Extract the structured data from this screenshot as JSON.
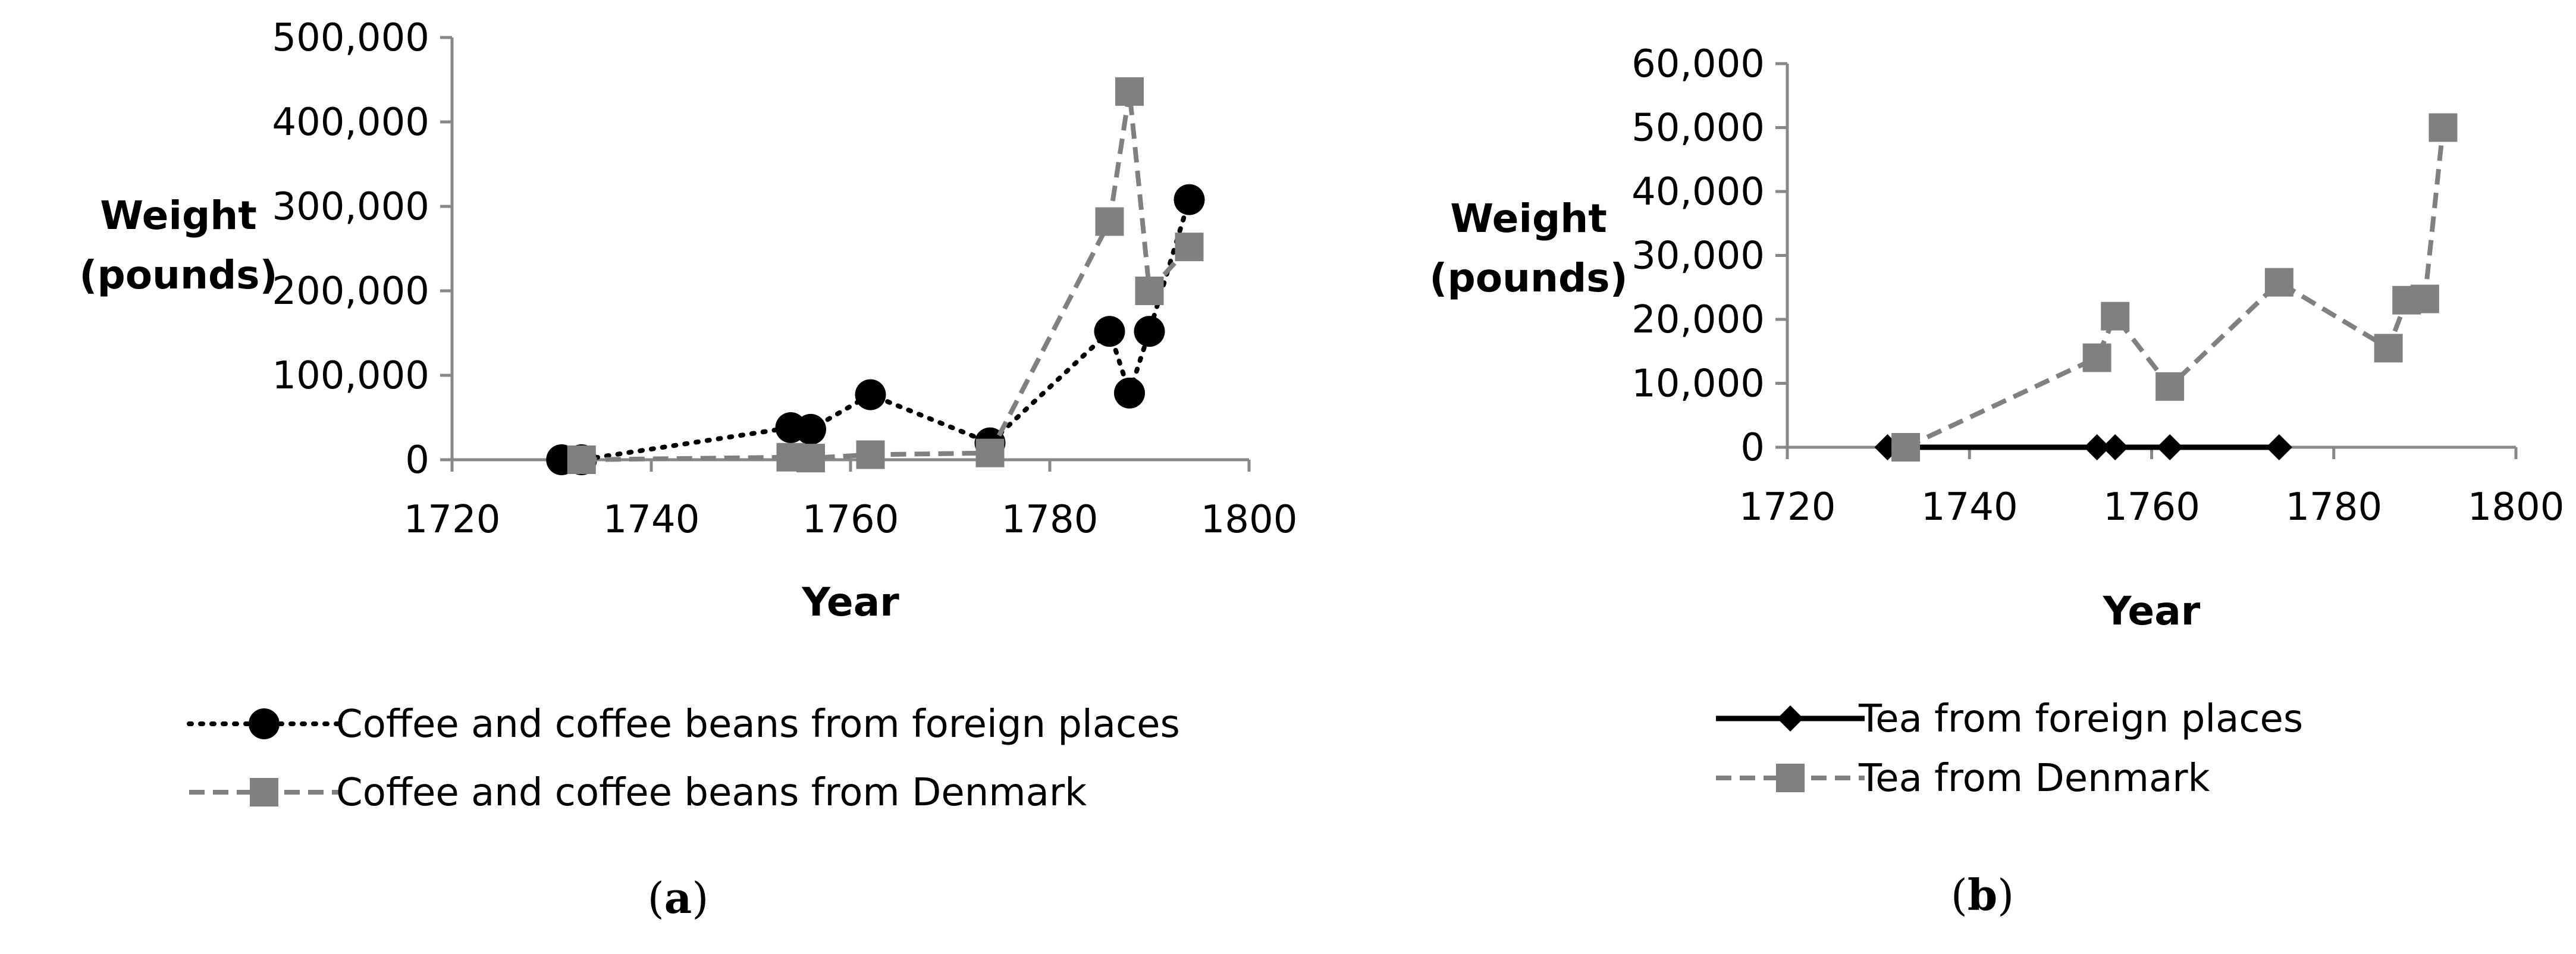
{
  "chart_data": [
    {
      "type": "line",
      "panel_label": "a",
      "title": "",
      "xlabel": "Year",
      "ylabel": [
        "Weight",
        "(pounds)"
      ],
      "xlim": [
        1720,
        1800
      ],
      "ylim": [
        0,
        500000
      ],
      "x_ticks": [
        1720,
        1740,
        1760,
        1780,
        1800
      ],
      "y_ticks": [
        0,
        100000,
        200000,
        300000,
        400000,
        500000
      ],
      "x_tick_labels": [
        "1720",
        "1740",
        "1760",
        "1780",
        "1800"
      ],
      "y_tick_labels": [
        "0",
        "100,000",
        "200,000",
        "300,000",
        "400,000",
        "500,000"
      ],
      "grid": false,
      "legend_position": "bottom",
      "series": [
        {
          "name": "Coffee and coffee beans from foreign places",
          "color": "#000000",
          "line_style": "dotted",
          "marker": "circle",
          "x": [
            1731,
            1733,
            1754,
            1756,
            1762,
            1774,
            1786,
            1788,
            1790,
            1794
          ],
          "y": [
            0,
            0,
            38000,
            36000,
            77000,
            20000,
            152000,
            79000,
            152000,
            308000
          ]
        },
        {
          "name": "Coffee and coffee beans from Denmark",
          "color": "#808080",
          "line_style": "dashed",
          "marker": "square",
          "x": [
            1733,
            1754,
            1756,
            1762,
            1774,
            1786,
            1788,
            1790,
            1794
          ],
          "y": [
            0,
            3000,
            2000,
            6000,
            8000,
            282000,
            436000,
            200000,
            252000
          ]
        }
      ]
    },
    {
      "type": "line",
      "panel_label": "b",
      "title": "",
      "xlabel": "Year",
      "ylabel": [
        "Weight",
        "(pounds)"
      ],
      "xlim": [
        1720,
        1800
      ],
      "ylim": [
        0,
        60000
      ],
      "x_ticks": [
        1720,
        1740,
        1760,
        1780,
        1800
      ],
      "y_ticks": [
        0,
        10000,
        20000,
        30000,
        40000,
        50000,
        60000
      ],
      "x_tick_labels": [
        "1720",
        "1740",
        "1760",
        "1780",
        "1800"
      ],
      "y_tick_labels": [
        "0",
        "10,000",
        "20,000",
        "30,000",
        "40,000",
        "50,000",
        "60,000"
      ],
      "grid": false,
      "legend_position": "bottom",
      "series": [
        {
          "name": "Tea from foreign places",
          "color": "#000000",
          "line_style": "solid",
          "marker": "diamond",
          "x": [
            1731,
            1754,
            1756,
            1762,
            1774
          ],
          "y": [
            0,
            0,
            0,
            0,
            0
          ]
        },
        {
          "name": "Tea from Denmark",
          "color": "#808080",
          "line_style": "dashed",
          "marker": "square",
          "x": [
            1733,
            1754,
            1756,
            1762,
            1774,
            1786,
            1788,
            1790,
            1792
          ],
          "y": [
            0,
            14000,
            20500,
            9500,
            25800,
            15500,
            23000,
            23200,
            50000
          ]
        }
      ]
    }
  ]
}
